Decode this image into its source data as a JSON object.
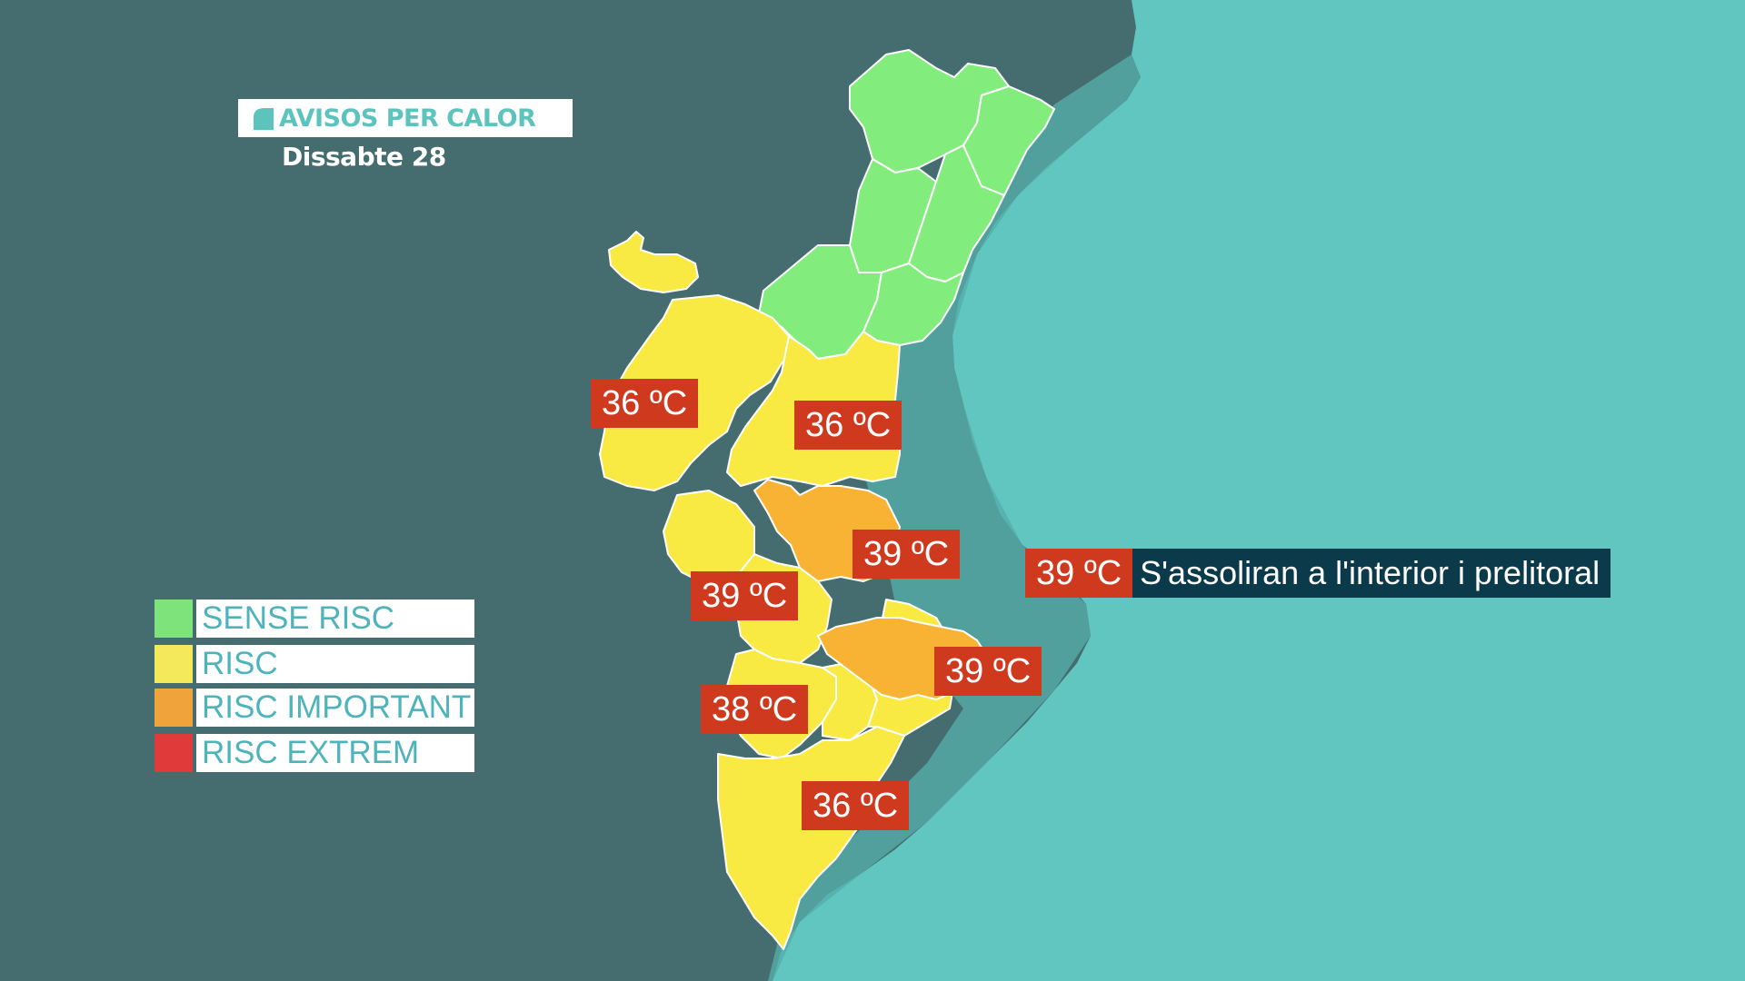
{
  "header": {
    "title": "AVISOS PER CALOR",
    "subtitle": "Dissabte 28"
  },
  "legend": {
    "items": [
      {
        "label": "SENSE RISC",
        "color": "#7ee37a"
      },
      {
        "label": "RISC",
        "color": "#f3e95b"
      },
      {
        "label": "RISC IMPORTANT",
        "color": "#f0a33a"
      },
      {
        "label": "RISC EXTREM",
        "color": "#e13a3a"
      }
    ]
  },
  "map": {
    "colors": {
      "land_background": "#456c6e",
      "sea": "#62c6c0",
      "sense_risc": "#82ec7d",
      "risc": "#f8ea43",
      "risc_important": "#f8b334"
    },
    "temperatures": [
      {
        "value": "36 ºC"
      },
      {
        "value": "36 ºC"
      },
      {
        "value": "39 ºC"
      },
      {
        "value": "39 ºC"
      },
      {
        "value": "39 ºC"
      },
      {
        "value": "38 ºC"
      },
      {
        "value": "36 ºC"
      }
    ]
  },
  "note": {
    "temp": "39 ºC",
    "text": "S'assoliran a l'interior i prelitoral"
  }
}
